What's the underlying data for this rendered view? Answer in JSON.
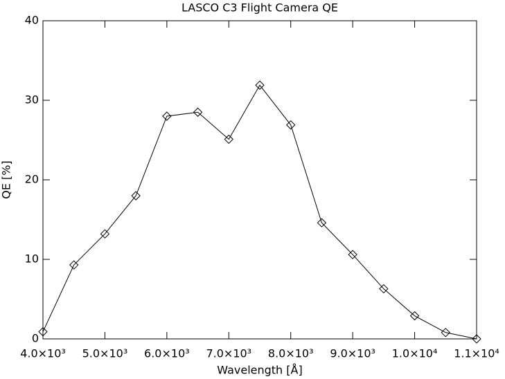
{
  "chart_data": {
    "type": "line",
    "title": "LASCO C3 Flight Camera QE",
    "xlabel": "Wavelength [Å]",
    "ylabel": "QE [%]",
    "x": [
      4000,
      4500,
      5000,
      5500,
      6000,
      6500,
      7000,
      7500,
      8000,
      8500,
      9000,
      9500,
      10000,
      10500,
      11000
    ],
    "series": [
      {
        "name": "QE",
        "color": "#000000",
        "marker": "diamond",
        "values": [
          0.9,
          9.3,
          13.2,
          18.0,
          28.0,
          28.5,
          25.1,
          31.9,
          26.9,
          14.6,
          10.6,
          6.3,
          2.9,
          0.8,
          0
        ]
      }
    ],
    "xlim": [
      4000,
      11000
    ],
    "xticks": [
      {
        "value": 4000,
        "label": "4.0×10³"
      },
      {
        "value": 5000,
        "label": "5.0×10³"
      },
      {
        "value": 6000,
        "label": "6.0×10³"
      },
      {
        "value": 7000,
        "label": "7.0×10³"
      },
      {
        "value": 8000,
        "label": "8.0×10³"
      },
      {
        "value": 9000,
        "label": "9.0×10³"
      },
      {
        "value": 10000,
        "label": "1.0×10⁴"
      },
      {
        "value": 11000,
        "label": "1.1×10⁴"
      }
    ],
    "ylim": [
      0,
      40
    ],
    "yticks": [
      0,
      10,
      20,
      30,
      40
    ],
    "grid": false
  }
}
